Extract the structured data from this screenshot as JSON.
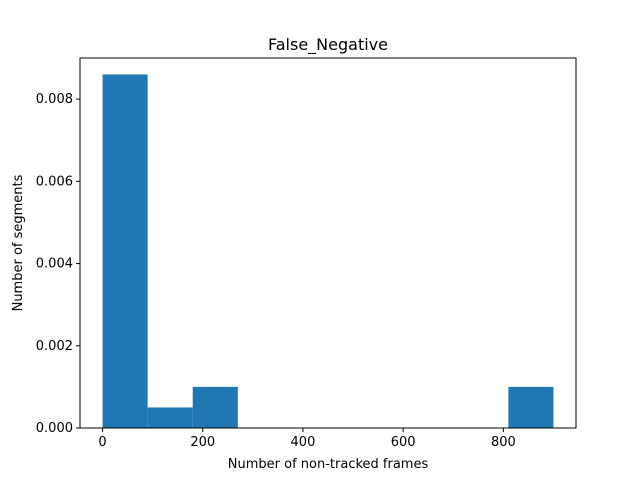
{
  "chart_data": {
    "type": "bar",
    "title": "False_Negative",
    "xlabel": "Number of non-tracked frames",
    "ylabel": "Number of segments",
    "bin_edges": [
      0,
      90,
      180,
      270,
      360,
      450,
      540,
      630,
      720,
      810,
      900
    ],
    "values": [
      0.0086,
      0.0005,
      0.001,
      0,
      0,
      0,
      0,
      0,
      0,
      0.001
    ],
    "xlim": [
      -45,
      945
    ],
    "ylim": [
      0,
      0.009
    ],
    "xticks": [
      0,
      200,
      400,
      600,
      800
    ],
    "xtick_labels": [
      "0",
      "200",
      "400",
      "600",
      "800"
    ],
    "yticks": [
      0,
      0.002,
      0.004,
      0.006,
      0.008
    ],
    "ytick_labels": [
      "0.000",
      "0.002",
      "0.004",
      "0.006",
      "0.008"
    ],
    "bar_color": "#1f77b4",
    "grid": false,
    "legend": "none"
  }
}
